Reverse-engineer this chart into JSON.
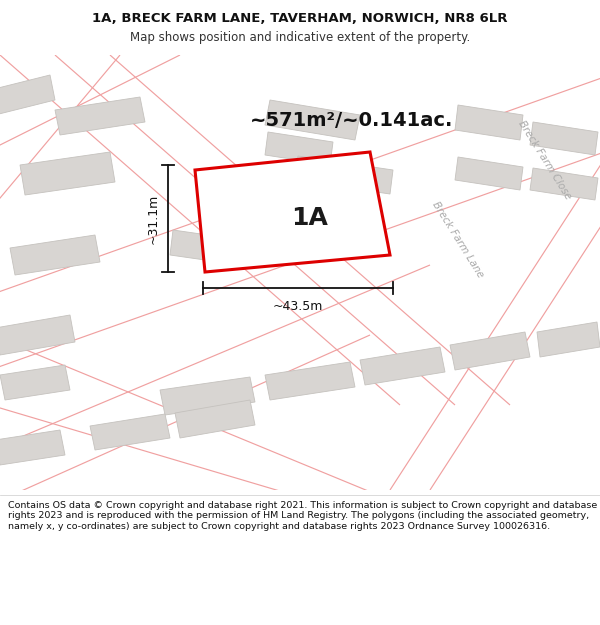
{
  "title_line1": "1A, BRECK FARM LANE, TAVERHAM, NORWICH, NR8 6LR",
  "title_line2": "Map shows position and indicative extent of the property.",
  "area_label": "~571m²/~0.141ac.",
  "property_label": "1A",
  "dim_width": "~43.5m",
  "dim_height": "~31.1m",
  "road_label1": "Breck Farm Lane",
  "road_label2": "Breck Farm Close",
  "footer_text": "Contains OS data © Crown copyright and database right 2021. This information is subject to Crown copyright and database rights 2023 and is reproduced with the permission of HM Land Registry. The polygons (including the associated geometry, namely x, y co-ordinates) are subject to Crown copyright and database rights 2023 Ordnance Survey 100026316.",
  "map_bg": "#f5f3f1",
  "building_color": "#d8d5d2",
  "building_edge_color": "#c5c2be",
  "plot_line_color": "#dd0000",
  "plot_fill_color": "#ffffff",
  "road_line_color": "#f0a0a0",
  "dim_line_color": "#111111",
  "footer_bg": "#ffffff",
  "title_bg": "#ffffff",
  "road_label_color": "#aaaaaa",
  "title_fontsize": 9.5,
  "subtitle_fontsize": 8.5,
  "area_fontsize": 14,
  "label_fontsize": 18,
  "dim_fontsize": 9,
  "road_fontsize": 7.5,
  "footer_fontsize": 6.8
}
